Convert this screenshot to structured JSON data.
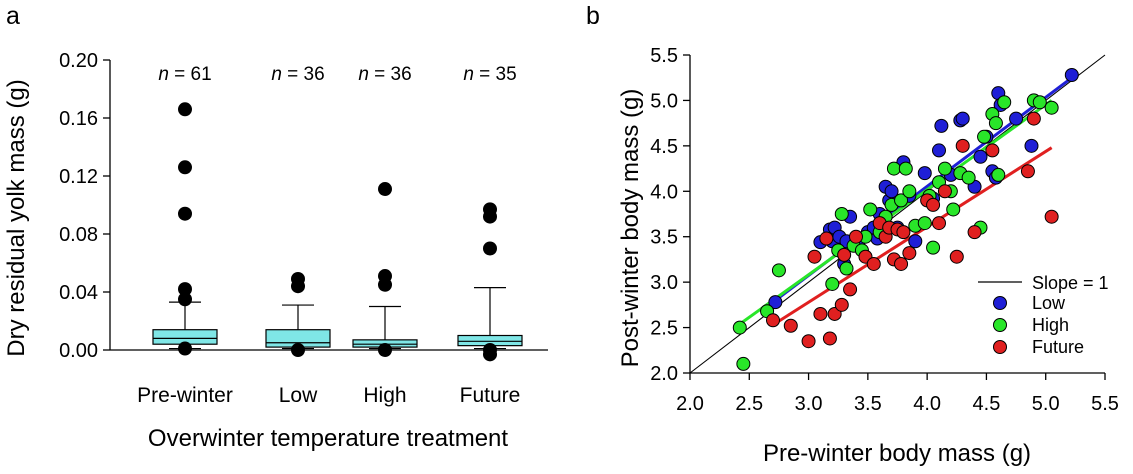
{
  "panels": {
    "a": {
      "label": "a"
    },
    "b": {
      "label": "b"
    }
  },
  "colors": {
    "box_fill": "#7fe6e6",
    "outlier": "#000000",
    "low": "#1f1fd6",
    "high": "#29e629",
    "future": "#e02020",
    "slope_line": "#000000"
  },
  "chart_data": [
    {
      "type": "box",
      "panel": "a",
      "xlabel": "Overwinter temperature treatment",
      "ylabel": "Dry residual yolk mass (g)",
      "ylim": [
        0,
        0.2
      ],
      "yticks": [
        0.0,
        0.04,
        0.08,
        0.12,
        0.16,
        0.2
      ],
      "ytick_labels": [
        "0.00",
        "0.04",
        "0.08",
        "0.12",
        "0.16",
        "0.20"
      ],
      "categories": [
        "Pre-winter",
        "Low",
        "High",
        "Future"
      ],
      "n_labels": [
        "n = 61",
        "n = 36",
        "n = 36",
        "n = 35"
      ],
      "n_prefix": "n",
      "n_values": [
        "= 61",
        "= 36",
        "= 36",
        "= 35"
      ],
      "boxes": [
        {
          "q1": 0.004,
          "median": 0.008,
          "q3": 0.014,
          "whisker_low": 0.001,
          "whisker_high": 0.033,
          "outliers": [
            0.166,
            0.126,
            0.094,
            0.042,
            0.035,
            0.001
          ]
        },
        {
          "q1": 0.002,
          "median": 0.005,
          "q3": 0.014,
          "whisker_low": 0.001,
          "whisker_high": 0.031,
          "outliers": [
            0.049,
            0.044,
            0.0
          ]
        },
        {
          "q1": 0.002,
          "median": 0.004,
          "q3": 0.007,
          "whisker_low": 0.001,
          "whisker_high": 0.03,
          "outliers": [
            0.111,
            0.051,
            0.045,
            0.0
          ]
        },
        {
          "q1": 0.003,
          "median": 0.006,
          "q3": 0.01,
          "whisker_low": 0.001,
          "whisker_high": 0.043,
          "outliers": [
            0.097,
            0.092,
            0.07,
            0.0,
            -0.003
          ]
        }
      ]
    },
    {
      "type": "scatter",
      "panel": "b",
      "xlabel": "Pre-winter body mass (g)",
      "ylabel": "Post-winter body mass (g)",
      "xlim": [
        2.0,
        5.5
      ],
      "ylim": [
        2.0,
        5.5
      ],
      "xticks": [
        "2.0",
        "2.5",
        "3.0",
        "3.5",
        "4.0",
        "4.5",
        "5.0",
        "5.5"
      ],
      "yticks": [
        "2.0",
        "2.5",
        "3.0",
        "3.5",
        "4.0",
        "4.5",
        "5.0",
        "5.5"
      ],
      "legend_position": "bottom-right",
      "reference_line": {
        "name": "Slope = 1",
        "from": [
          2.0,
          2.0
        ],
        "to": [
          5.5,
          5.5
        ]
      },
      "series": [
        {
          "name": "Low",
          "color_key": "low",
          "fit": {
            "x1": 2.7,
            "y1": 2.78,
            "x2": 5.2,
            "y2": 5.23
          },
          "points": [
            [
              2.72,
              2.78
            ],
            [
              3.1,
              3.44
            ],
            [
              3.18,
              3.58
            ],
            [
              3.2,
              3.45
            ],
            [
              3.22,
              3.6
            ],
            [
              3.26,
              3.5
            ],
            [
              3.3,
              3.2
            ],
            [
              3.32,
              3.45
            ],
            [
              3.35,
              3.72
            ],
            [
              3.42,
              3.4
            ],
            [
              3.5,
              3.55
            ],
            [
              3.55,
              3.6
            ],
            [
              3.58,
              3.48
            ],
            [
              3.6,
              3.75
            ],
            [
              3.65,
              4.05
            ],
            [
              3.68,
              3.9
            ],
            [
              3.7,
              4.0
            ],
            [
              3.75,
              3.6
            ],
            [
              3.8,
              4.32
            ],
            [
              3.85,
              3.95
            ],
            [
              3.9,
              3.45
            ],
            [
              3.98,
              4.2
            ],
            [
              4.05,
              3.92
            ],
            [
              4.1,
              4.45
            ],
            [
              4.12,
              4.72
            ],
            [
              4.2,
              4.18
            ],
            [
              4.28,
              4.78
            ],
            [
              4.3,
              4.8
            ],
            [
              4.4,
              4.05
            ],
            [
              4.45,
              4.38
            ],
            [
              4.5,
              4.6
            ],
            [
              4.55,
              4.22
            ],
            [
              4.58,
              4.15
            ],
            [
              4.6,
              5.08
            ],
            [
              4.62,
              4.95
            ],
            [
              4.75,
              4.8
            ],
            [
              4.88,
              4.5
            ],
            [
              5.22,
              5.28
            ]
          ]
        },
        {
          "name": "High",
          "color_key": "high",
          "fit": {
            "x1": 2.4,
            "y1": 2.52,
            "x2": 5.05,
            "y2": 5.0
          },
          "points": [
            [
              2.42,
              2.5
            ],
            [
              2.45,
              2.1
            ],
            [
              2.65,
              2.68
            ],
            [
              2.75,
              3.13
            ],
            [
              3.2,
              2.98
            ],
            [
              3.25,
              3.35
            ],
            [
              3.28,
              3.75
            ],
            [
              3.32,
              3.15
            ],
            [
              3.38,
              3.4
            ],
            [
              3.45,
              3.35
            ],
            [
              3.48,
              3.5
            ],
            [
              3.52,
              3.8
            ],
            [
              3.6,
              3.55
            ],
            [
              3.65,
              3.72
            ],
            [
              3.7,
              3.85
            ],
            [
              3.72,
              4.25
            ],
            [
              3.78,
              3.9
            ],
            [
              3.82,
              4.25
            ],
            [
              3.85,
              4.0
            ],
            [
              3.9,
              3.62
            ],
            [
              3.98,
              3.65
            ],
            [
              4.02,
              3.95
            ],
            [
              4.05,
              3.38
            ],
            [
              4.1,
              4.1
            ],
            [
              4.15,
              4.25
            ],
            [
              4.2,
              4.0
            ],
            [
              4.22,
              3.8
            ],
            [
              4.28,
              4.2
            ],
            [
              4.35,
              4.15
            ],
            [
              4.45,
              3.6
            ],
            [
              4.48,
              4.6
            ],
            [
              4.55,
              4.85
            ],
            [
              4.58,
              4.75
            ],
            [
              4.6,
              4.18
            ],
            [
              4.65,
              4.98
            ],
            [
              4.9,
              5.0
            ],
            [
              4.95,
              4.98
            ],
            [
              5.05,
              4.92
            ]
          ]
        },
        {
          "name": "Future",
          "color_key": "future",
          "fit": {
            "x1": 2.7,
            "y1": 2.53,
            "x2": 5.05,
            "y2": 4.48
          },
          "points": [
            [
              2.7,
              2.58
            ],
            [
              2.85,
              2.52
            ],
            [
              3.0,
              2.35
            ],
            [
              3.05,
              3.28
            ],
            [
              3.1,
              2.65
            ],
            [
              3.15,
              3.48
            ],
            [
              3.18,
              2.38
            ],
            [
              3.22,
              2.65
            ],
            [
              3.28,
              2.75
            ],
            [
              3.3,
              3.3
            ],
            [
              3.35,
              2.92
            ],
            [
              3.4,
              3.5
            ],
            [
              3.48,
              3.28
            ],
            [
              3.55,
              3.2
            ],
            [
              3.6,
              3.65
            ],
            [
              3.65,
              3.5
            ],
            [
              3.68,
              3.6
            ],
            [
              3.72,
              3.25
            ],
            [
              3.75,
              3.58
            ],
            [
              3.78,
              3.2
            ],
            [
              3.8,
              3.55
            ],
            [
              3.85,
              3.32
            ],
            [
              4.0,
              3.9
            ],
            [
              4.05,
              3.85
            ],
            [
              4.1,
              3.65
            ],
            [
              4.15,
              4.0
            ],
            [
              4.25,
              3.28
            ],
            [
              4.3,
              4.5
            ],
            [
              4.4,
              3.55
            ],
            [
              4.55,
              4.45
            ],
            [
              4.85,
              4.22
            ],
            [
              4.9,
              4.8
            ],
            [
              5.05,
              3.72
            ]
          ]
        }
      ]
    }
  ]
}
